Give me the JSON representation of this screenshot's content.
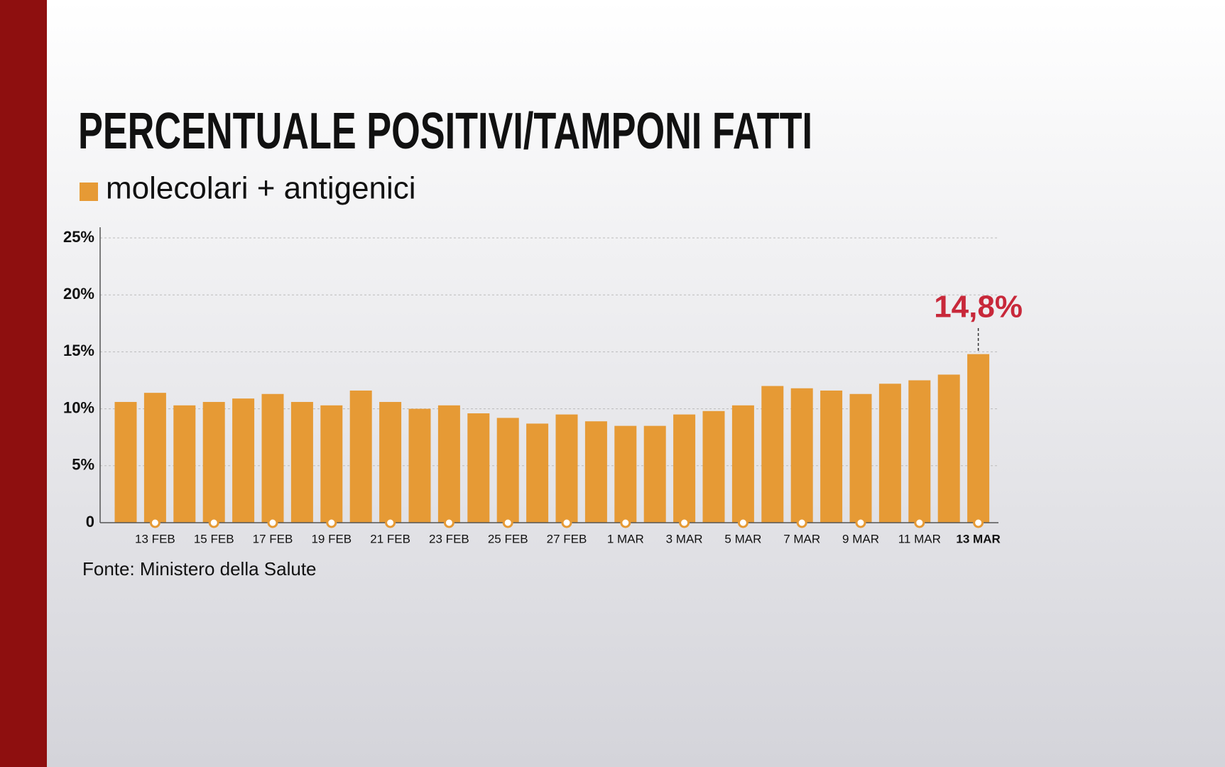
{
  "chart_data": {
    "type": "bar",
    "title": "PERCENTUALE POSITIVI/TAMPONI FATTI",
    "source": "Fonte: Ministero della Salute",
    "categories": [
      null,
      "13 FEB",
      null,
      "15 FEB",
      null,
      "17 FEB",
      null,
      "19 FEB",
      null,
      "21 FEB",
      null,
      "23 FEB",
      null,
      "25 FEB",
      null,
      "27 FEB",
      null,
      "1 MAR",
      null,
      "3 MAR",
      null,
      "5 MAR",
      null,
      "7 MAR",
      null,
      "9 MAR",
      null,
      "11 MAR",
      null,
      "13 MAR"
    ],
    "series": [
      {
        "name": "molecolari + antigenici",
        "color": "#e69a35",
        "values": [
          10.6,
          11.4,
          10.3,
          10.6,
          10.9,
          11.3,
          10.6,
          10.3,
          11.6,
          10.6,
          10.0,
          10.3,
          9.6,
          9.2,
          8.7,
          9.5,
          8.9,
          8.5,
          8.5,
          9.5,
          9.8,
          10.3,
          12.0,
          11.8,
          11.6,
          11.3,
          12.2,
          12.5,
          13.0,
          14.8
        ],
        "value_labels": [
          null,
          null,
          null,
          null,
          null,
          null,
          null,
          null,
          null,
          null,
          null,
          null,
          null,
          null,
          null,
          null,
          null,
          null,
          null,
          null,
          null,
          null,
          null,
          null,
          null,
          null,
          null,
          null,
          null,
          "14,8%"
        ]
      }
    ],
    "ylim": [
      0,
      25
    ],
    "yticks": [
      0,
      {
        "value": 5,
        "label": "5%"
      },
      {
        "value": 10,
        "label": "10%"
      },
      {
        "value": 15,
        "label": "15%"
      },
      {
        "value": 20,
        "label": "20%"
      },
      {
        "value": 25,
        "label": "25%"
      }
    ],
    "grid": true
  }
}
